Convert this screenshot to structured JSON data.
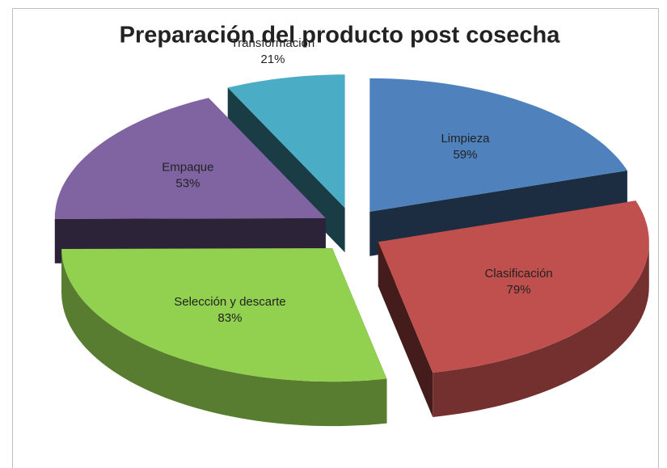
{
  "chart_data": {
    "type": "pie",
    "title": "Preparación del producto post cosecha",
    "categories": [
      "Limpieza",
      "Clasificación",
      "Selección y descarte",
      "Empaque",
      "Transformación"
    ],
    "values": [
      59,
      79,
      83,
      53,
      21
    ],
    "value_labels": [
      "59%",
      "79%",
      "83%",
      "53%",
      "21%"
    ],
    "colors": [
      "#4f81bd",
      "#c0504d",
      "#92d050",
      "#8064a2",
      "#4bacc6"
    ]
  }
}
